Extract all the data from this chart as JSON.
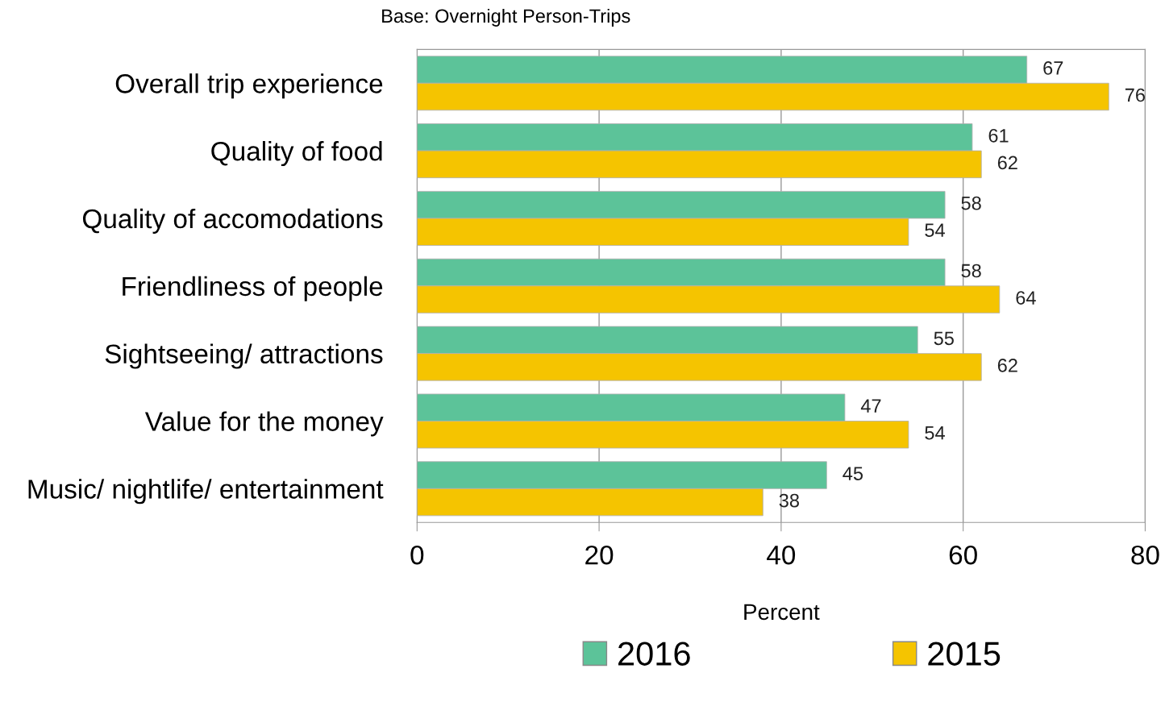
{
  "chart_data": {
    "type": "bar",
    "orientation": "horizontal",
    "title": "Base: Overnight Person-Trips",
    "xlabel": "Percent",
    "categories": [
      "Overall trip experience",
      "Quality of food",
      "Quality of accomodations",
      "Friendliness of people",
      "Sightseeing/ attractions",
      "Value for the money",
      "Music/ nightlife/ entertainment"
    ],
    "series": [
      {
        "name": "2016",
        "color": "#5cc399",
        "values": [
          67,
          61,
          58,
          58,
          55,
          47,
          45
        ]
      },
      {
        "name": "2015",
        "color": "#f5c400",
        "values": [
          76,
          62,
          54,
          64,
          62,
          54,
          38
        ]
      }
    ],
    "xlim": [
      0,
      80
    ],
    "xticks": [
      0,
      20,
      40,
      60,
      80
    ],
    "grid": "x",
    "legend": "bottom",
    "data_labels": true
  }
}
